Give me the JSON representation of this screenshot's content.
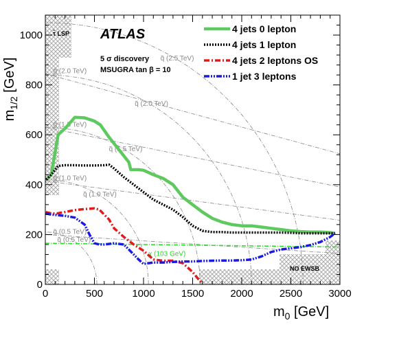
{
  "chart_data": {
    "type": "line",
    "title": "",
    "experiment_label": "ATLAS",
    "info_lines": [
      "5 σ discovery",
      "MSUGRA tan β = 10"
    ],
    "xlabel": "m_0 [GeV]",
    "ylabel": "m_1/2 [GeV]",
    "xlim": [
      0,
      3000
    ],
    "ylim": [
      0,
      1080
    ],
    "x_ticks": [
      "0",
      "500",
      "1000",
      "1500",
      "2000",
      "2500",
      "3000"
    ],
    "y_ticks": [
      "0",
      "200",
      "400",
      "600",
      "800",
      "1000"
    ],
    "legend_position": "top-right",
    "series": [
      {
        "name": "4 jets 0 lepton",
        "color": "#5ec95e",
        "style": "solid",
        "x": [
          10,
          60,
          130,
          200,
          300,
          400,
          500,
          560,
          650,
          750,
          850,
          870,
          950,
          1000,
          1100,
          1200,
          1300,
          1400,
          1500,
          1600,
          1700,
          1800,
          1900,
          2000,
          2100,
          2200,
          2300,
          2400,
          2500,
          2600,
          2700,
          2800,
          2900,
          2950
        ],
        "y": [
          420,
          440,
          600,
          625,
          670,
          668,
          655,
          640,
          590,
          540,
          490,
          460,
          460,
          458,
          440,
          425,
          400,
          350,
          320,
          290,
          265,
          250,
          240,
          235,
          235,
          230,
          225,
          220,
          215,
          212,
          210,
          210,
          208,
          205
        ]
      },
      {
        "name": "4 jets 1 lepton",
        "color": "#000000",
        "style": "dotted",
        "x": [
          10,
          60,
          130,
          200,
          300,
          400,
          500,
          600,
          650,
          700,
          800,
          900,
          1000,
          1100,
          1200,
          1300,
          1400,
          1500,
          1600,
          1700,
          1800,
          1900,
          2000,
          2100,
          2200,
          2300,
          2400,
          2500,
          2600,
          2700,
          2800,
          2900,
          2950
        ],
        "y": [
          420,
          440,
          475,
          478,
          478,
          477,
          477,
          478,
          480,
          465,
          430,
          400,
          370,
          340,
          320,
          300,
          270,
          235,
          215,
          210,
          210,
          208,
          208,
          208,
          208,
          208,
          208,
          207,
          205,
          205,
          205,
          205,
          205
        ]
      },
      {
        "name": "4 jets 2 leptons OS",
        "color": "#e11a1a",
        "style": "dash-dot",
        "x": [
          5,
          60,
          120,
          200,
          300,
          400,
          500,
          550,
          600,
          650,
          700,
          800,
          900,
          1000,
          1100,
          1200,
          1300,
          1400,
          1500,
          1560,
          1600
        ],
        "y": [
          290,
          285,
          285,
          290,
          298,
          302,
          305,
          300,
          280,
          260,
          225,
          190,
          160,
          135,
          100,
          95,
          95,
          85,
          50,
          20,
          5
        ]
      },
      {
        "name": "1 jet 3 leptons",
        "color": "#1a1adf",
        "style": "dash-dot-dot",
        "x": [
          5,
          60,
          120,
          200,
          300,
          400,
          450,
          500,
          550,
          600,
          700,
          800,
          850,
          900,
          950,
          1000,
          1100,
          1200,
          1300,
          1400,
          1500,
          1600,
          1700,
          1800,
          1900,
          2000,
          2100,
          2200,
          2300,
          2400,
          2500,
          2600,
          2700,
          2800,
          2900,
          2950
        ],
        "y": [
          285,
          280,
          278,
          275,
          268,
          240,
          200,
          165,
          160,
          160,
          165,
          160,
          140,
          120,
          100,
          82,
          88,
          88,
          90,
          92,
          92,
          94,
          95,
          96,
          96,
          97,
          100,
          112,
          130,
          140,
          145,
          150,
          158,
          170,
          190,
          205
        ]
      }
    ],
    "squark_contours": [
      {
        "label": "q̃ (0.5 TeV)",
        "r": 500
      },
      {
        "label": "q̃ (1.0 TeV)",
        "r": 1000
      },
      {
        "label": "q̃ (1.5 TeV)",
        "r": 1500
      },
      {
        "label": "q̃ (2.0 TeV)",
        "r": 2000
      },
      {
        "label": "q̃ (2.5 TeV)",
        "r": 2500
      }
    ],
    "gluino_contours": [
      {
        "label": "g̃ (0.5 TeV)",
        "y": 200
      },
      {
        "label": "g̃ (1.0 TeV)",
        "y": 415
      },
      {
        "label": "g̃ (1.5 TeV)",
        "y": 630
      },
      {
        "label": "g̃ (2.0 TeV)",
        "y": 845
      }
    ],
    "higgs_line": {
      "label": "χ (103 GeV)",
      "color": "#22dd22",
      "y_start": 165,
      "y_end": 150
    },
    "excluded_regions": [
      {
        "label": "τ̃ LSP"
      },
      {
        "label": "NO EWSB"
      }
    ]
  },
  "colors": {
    "contour": "#888888",
    "hatch": "#aaaaaa"
  }
}
